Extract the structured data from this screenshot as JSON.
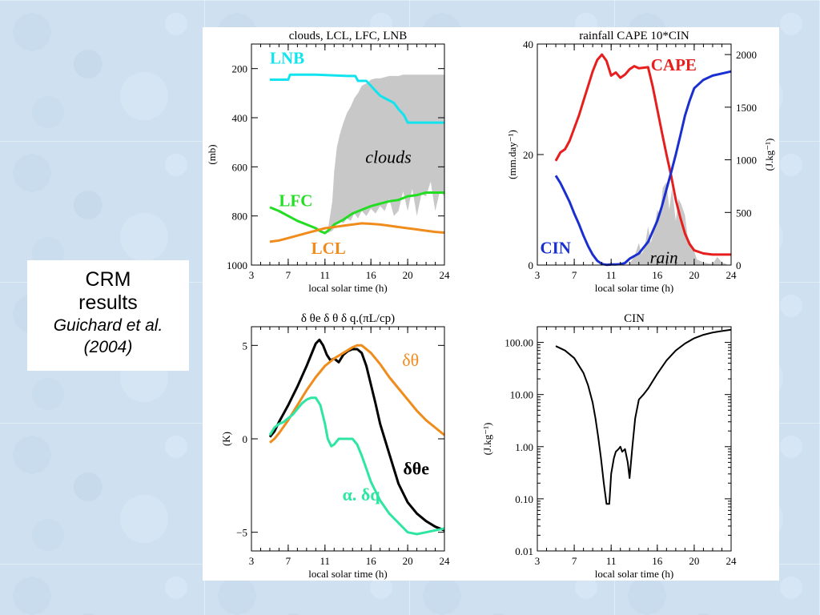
{
  "caption": {
    "line1": "CRM",
    "line2": "results",
    "line3": "Guichard et al.",
    "line4": "(2004)"
  },
  "colors": {
    "background": "#cfe1f0",
    "cyan": "#11e4ee",
    "green": "#22dd22",
    "orange": "#f08c1c",
    "red": "#e61e1e",
    "blue": "#1a2fcf",
    "teal": "#2ee6a2",
    "gray": "#c8c8c8"
  },
  "chart_data": [
    {
      "type": "line",
      "title": "clouds, LCL, LFC, LNB",
      "xlabel": "local solar time (h)",
      "ylabel": "(mb)",
      "xlim": [
        3,
        24
      ],
      "ylim": [
        1000,
        100
      ],
      "xticks": [
        3,
        7,
        11,
        16,
        20,
        24
      ],
      "yticks": [
        200,
        400,
        600,
        800,
        1000
      ],
      "grid": false,
      "series": [
        {
          "name": "LNB",
          "color": "#11e4ee",
          "x": [
            5,
            7,
            7.2,
            10,
            13.5,
            14.3,
            14.6,
            15.5,
            16,
            16.5,
            17,
            17.5,
            18,
            18.5,
            19,
            19.6,
            20,
            21,
            22,
            24
          ],
          "y": [
            245,
            245,
            225,
            225,
            230,
            230,
            250,
            250,
            270,
            290,
            310,
            320,
            330,
            340,
            365,
            390,
            420,
            420,
            420,
            420
          ]
        },
        {
          "name": "LFC",
          "color": "#22dd22",
          "x": [
            5,
            6,
            7,
            8,
            9,
            10,
            10.5,
            11,
            11.5,
            12,
            13,
            14,
            15,
            16,
            17,
            18,
            19,
            20,
            21,
            22,
            23,
            24
          ],
          "y": [
            765,
            780,
            800,
            820,
            835,
            850,
            862,
            870,
            855,
            835,
            815,
            790,
            775,
            760,
            750,
            740,
            735,
            720,
            715,
            705,
            705,
            705
          ]
        },
        {
          "name": "LCL",
          "color": "#f08c1c",
          "x": [
            5,
            6,
            7,
            8,
            9,
            10,
            11,
            12,
            13,
            14,
            15,
            16,
            17,
            18,
            19,
            20,
            21,
            22,
            23,
            24
          ],
          "y": [
            905,
            900,
            890,
            880,
            870,
            860,
            850,
            845,
            840,
            835,
            830,
            832,
            835,
            840,
            845,
            850,
            855,
            860,
            865,
            868
          ]
        },
        {
          "name": "clouds",
          "color": "#c8c8c8",
          "fill": true,
          "x": [
            11.3,
            11.8,
            12,
            12.3,
            12.6,
            13,
            13.4,
            13.8,
            14.2,
            14.6,
            15,
            15.5,
            16,
            16.5,
            17,
            17.5,
            18,
            18.5,
            19,
            19.5,
            20,
            20.5,
            21,
            21.5,
            22,
            22.5,
            23,
            23.5,
            24
          ],
          "y": [
            860,
            740,
            620,
            520,
            470,
            420,
            380,
            355,
            320,
            300,
            270,
            260,
            245,
            240,
            240,
            235,
            230,
            230,
            230,
            225,
            225,
            225,
            225,
            225,
            225,
            225,
            225,
            225,
            225
          ],
          "y_bottom": [
            870,
            860,
            850,
            830,
            820,
            830,
            810,
            820,
            790,
            810,
            780,
            800,
            770,
            790,
            760,
            780,
            730,
            800,
            780,
            700,
            780,
            690,
            800,
            710,
            720,
            660,
            780,
            700,
            720
          ]
        }
      ],
      "annotations": [
        "LNB",
        "LFC",
        "LCL",
        "clouds"
      ]
    },
    {
      "type": "line",
      "title": "rainfall  CAPE  10*CIN",
      "xlabel": "local solar time (h)",
      "ylabel": "(mm.day⁻¹)",
      "ylabel_right": "(J.kg⁻¹)",
      "xlim": [
        3,
        24
      ],
      "ylim": [
        0,
        40
      ],
      "ylim_right": [
        0,
        2100
      ],
      "xticks": [
        3,
        7,
        11,
        16,
        20,
        24
      ],
      "yticks": [
        0,
        20,
        40
      ],
      "yticks_right": [
        0,
        500,
        1000,
        1500,
        2000
      ],
      "grid": false,
      "series": [
        {
          "name": "CAPE",
          "color": "#e61e1e",
          "axis": "right",
          "x": [
            5,
            5.5,
            6,
            6.5,
            7,
            7.5,
            8,
            8.5,
            9,
            9.5,
            10,
            10.5,
            11,
            11.5,
            12,
            12.5,
            13,
            13.5,
            14,
            15,
            15.5,
            16,
            16.5,
            17,
            17.5,
            18,
            18.5,
            19,
            19.5,
            20,
            21,
            22,
            23,
            24
          ],
          "y": [
            990,
            1070,
            1100,
            1180,
            1300,
            1420,
            1560,
            1700,
            1840,
            1950,
            2000,
            1940,
            1800,
            1830,
            1780,
            1810,
            1860,
            1890,
            1870,
            1880,
            1700,
            1480,
            1260,
            1050,
            850,
            620,
            450,
            300,
            200,
            140,
            110,
            100,
            100,
            100
          ]
        },
        {
          "name": "CIN",
          "color": "#1a2fcf",
          "axis": "right",
          "x": [
            5,
            5.5,
            6,
            6.5,
            7,
            7.5,
            8,
            8.5,
            9,
            9.5,
            10,
            10.5,
            11,
            11.5,
            12,
            12.5,
            13,
            14,
            15,
            16,
            16.5,
            17,
            17.5,
            18,
            18.5,
            19,
            19.5,
            20,
            21,
            22,
            23,
            24
          ],
          "y": [
            850,
            780,
            690,
            600,
            490,
            390,
            280,
            180,
            100,
            40,
            10,
            2,
            5,
            5,
            8,
            20,
            60,
            110,
            220,
            420,
            560,
            720,
            880,
            1050,
            1230,
            1420,
            1560,
            1680,
            1760,
            1800,
            1820,
            1840
          ]
        },
        {
          "name": "rain",
          "color": "#c8c8c8",
          "fill": true,
          "axis": "left",
          "x": [
            13,
            13.3,
            13.6,
            14,
            14.3,
            14.6,
            15,
            15.3,
            15.6,
            16,
            16.3,
            16.6,
            17,
            17.3,
            17.6,
            18,
            18.3,
            18.6,
            19,
            19.3,
            19.6,
            20,
            20.3,
            20.6,
            21,
            21.5,
            22,
            22.5,
            23,
            23.5
          ],
          "y": [
            0.3,
            1,
            2,
            4,
            2,
            3,
            7,
            4,
            6,
            10,
            9,
            14,
            15,
            10,
            14,
            8,
            12,
            11,
            9,
            5,
            4,
            2.5,
            1,
            0.8,
            0.5,
            0.3,
            0.2,
            1.5,
            0.5,
            0.2
          ]
        }
      ],
      "annotations": [
        "CAPE",
        "CIN",
        "rain"
      ]
    },
    {
      "type": "line",
      "title": "δ θe      δ θ    δ q.(πL/cp)",
      "xlabel": "local solar time (h)",
      "ylabel": "(K)",
      "xlim": [
        3,
        24
      ],
      "ylim": [
        -6,
        6
      ],
      "xticks": [
        3,
        7,
        11,
        16,
        20,
        24
      ],
      "yticks": [
        -5,
        0,
        5
      ],
      "grid": false,
      "series": [
        {
          "name": "δθe",
          "color": "#000000",
          "x": [
            5,
            5.5,
            6,
            7,
            8,
            9,
            10,
            10.4,
            10.8,
            11.2,
            11.6,
            12,
            12.5,
            13,
            13.5,
            14,
            14.5,
            15,
            15.5,
            16,
            16.5,
            17,
            18,
            19,
            20,
            21,
            22,
            23,
            24
          ],
          "y": [
            0.1,
            0.4,
            0.9,
            1.8,
            2.8,
            3.9,
            5.1,
            5.3,
            5.0,
            4.5,
            4.2,
            4.3,
            4.1,
            4.5,
            4.7,
            4.8,
            4.8,
            4.6,
            3.9,
            2.9,
            1.9,
            0.8,
            -0.8,
            -2.4,
            -3.4,
            -4.0,
            -4.4,
            -4.7,
            -4.9
          ]
        },
        {
          "name": "δθ",
          "color": "#f08c1c",
          "x": [
            5,
            5.5,
            6,
            7,
            8,
            9,
            10,
            11,
            12,
            13,
            14,
            14.5,
            15,
            16,
            17,
            18,
            19,
            20,
            21,
            22,
            23,
            24
          ],
          "y": [
            -0.2,
            0,
            0.3,
            1.0,
            1.8,
            2.6,
            3.3,
            3.9,
            4.3,
            4.6,
            4.9,
            5.0,
            5.0,
            4.6,
            4.0,
            3.3,
            2.7,
            2.1,
            1.5,
            1.0,
            0.6,
            0.2
          ]
        },
        {
          "name": "α. δq",
          "color": "#2ee6a2",
          "x": [
            5,
            5.5,
            6,
            6.5,
            7,
            7.5,
            8,
            8.5,
            9,
            9.5,
            10,
            10.5,
            11,
            11.3,
            11.7,
            12,
            12.5,
            13,
            13.5,
            14,
            14.5,
            15,
            15.5,
            16,
            17,
            18,
            19,
            20,
            21,
            22,
            23,
            24
          ],
          "y": [
            0.2,
            0.6,
            0.8,
            0.9,
            1.1,
            1.3,
            1.6,
            1.9,
            2.1,
            2.2,
            2.2,
            1.8,
            0.8,
            0.0,
            -0.4,
            -0.3,
            0.0,
            0.0,
            0.0,
            0.0,
            -0.3,
            -0.9,
            -1.6,
            -2.3,
            -3.3,
            -4.0,
            -4.5,
            -5.0,
            -5.1,
            -5.0,
            -4.9,
            -4.8
          ]
        }
      ],
      "annotations": [
        "δθ",
        "δθe",
        "α. δq"
      ]
    },
    {
      "type": "line",
      "title": "CIN",
      "xlabel": "local solar time (h)",
      "ylabel": "(J.kg⁻¹)",
      "yscale": "log",
      "xlim": [
        3,
        24
      ],
      "ylim": [
        0.01,
        200
      ],
      "xticks": [
        3,
        7,
        11,
        16,
        20,
        24
      ],
      "yticks": [
        "0.01",
        "0.10",
        "1.00",
        "10.00",
        "100.00"
      ],
      "grid": false,
      "series": [
        {
          "name": "CIN",
          "color": "#000000",
          "x": [
            5,
            6,
            7,
            8,
            8.5,
            9,
            9.3,
            9.6,
            9.9,
            10.2,
            10.5,
            10.8,
            11,
            11.3,
            11.5,
            11.8,
            12,
            12.2,
            12.5,
            12.8,
            13,
            13.3,
            13.6,
            14,
            14.5,
            15,
            16,
            17,
            18,
            19,
            20,
            21,
            22,
            23,
            24
          ],
          "y": [
            85,
            70,
            50,
            26,
            15,
            7,
            3.5,
            1.5,
            0.6,
            0.2,
            0.08,
            0.08,
            0.3,
            0.6,
            0.8,
            0.9,
            1.0,
            0.8,
            0.9,
            0.5,
            0.25,
            1.0,
            3.5,
            8,
            10,
            13,
            25,
            45,
            70,
            95,
            120,
            140,
            155,
            165,
            175
          ]
        }
      ]
    }
  ]
}
